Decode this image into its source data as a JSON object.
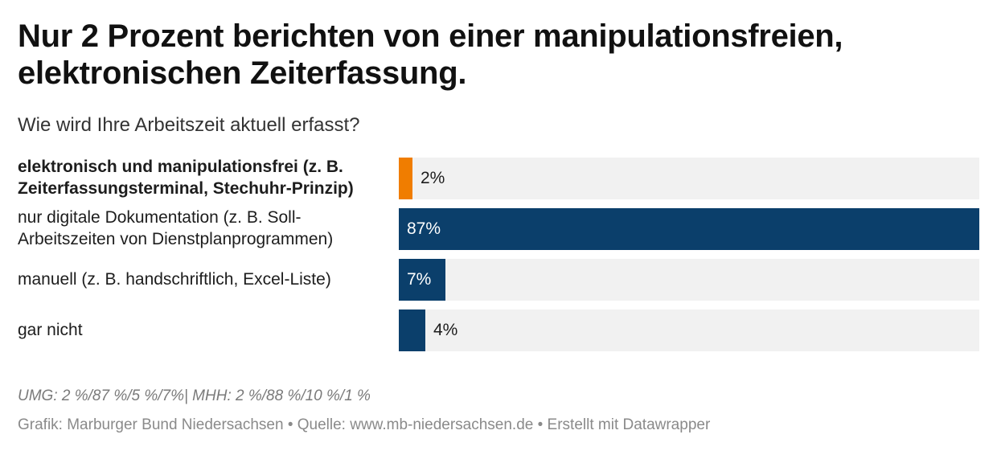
{
  "title": "Nur 2 Prozent berichten von einer manipulationsfreien, elektronischen Zeiterfassung.",
  "subtitle": "Wie wird Ihre Arbeitszeit aktuell erfasst?",
  "colors": {
    "highlight": "#f07d00",
    "primary": "#0b3f6b",
    "track": "#f1f1f1"
  },
  "chart_data": {
    "type": "bar",
    "orientation": "horizontal",
    "title": "Wie wird Ihre Arbeitszeit aktuell erfasst?",
    "xlim": [
      0,
      87
    ],
    "unit": "%",
    "categories": [
      "elektronisch und manipulationsfrei (z. B. Zeiterfassungsterminal, Stechuhr-Prinzip)",
      "nur digitale Dokumentation (z. B. Soll-Arbeitszeiten von Dienstplanprogrammen)",
      "manuell (z. B. handschriftlich, Excel-Liste)",
      "gar nicht"
    ],
    "values": [
      2,
      87,
      7,
      4
    ],
    "labels": [
      "2%",
      "87%",
      "7%",
      "4%"
    ],
    "highlighted": [
      true,
      false,
      false,
      false
    ]
  },
  "footer": {
    "note": "UMG: 2 %/87 %/5 %/7%| MHH: 2 %/88 %/10 %/1 %",
    "source": "Grafik: Marburger Bund Niedersachsen • Quelle: www.mb-niedersachsen.de • Erstellt mit Datawrapper"
  }
}
